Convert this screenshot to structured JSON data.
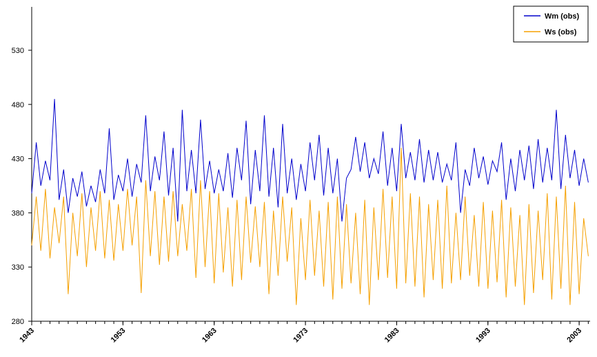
{
  "chart_data": {
    "type": "line",
    "title": "",
    "xlabel": "",
    "ylabel": "",
    "xlim": [
      1943,
      2004.2
    ],
    "ylim": [
      280,
      570
    ],
    "yticks": [
      280,
      330,
      380,
      430,
      480,
      530
    ],
    "xticks": [
      "1943",
      "1953",
      "1963",
      "1973",
      "1983",
      "1993",
      "2003"
    ],
    "grid": false,
    "legend_position": "top-right",
    "colors": {
      "Wm (obs)": "#0000cc",
      "Ws (obs)": "#f5a000"
    },
    "series": [
      {
        "name": "Wm (obs)",
        "x": [
          1943.0,
          1943.5,
          1944.0,
          1944.5,
          1945.0,
          1945.5,
          1946.0,
          1946.5,
          1947.0,
          1947.5,
          1948.0,
          1948.5,
          1949.0,
          1949.5,
          1950.0,
          1950.5,
          1951.0,
          1951.5,
          1952.0,
          1952.5,
          1953.0,
          1953.5,
          1954.0,
          1954.5,
          1955.0,
          1955.5,
          1956.0,
          1956.5,
          1957.0,
          1957.5,
          1958.0,
          1958.5,
          1959.0,
          1959.5,
          1960.0,
          1960.5,
          1961.0,
          1961.5,
          1962.0,
          1962.5,
          1963.0,
          1963.5,
          1964.0,
          1964.5,
          1965.0,
          1965.5,
          1966.0,
          1966.5,
          1967.0,
          1967.5,
          1968.0,
          1968.5,
          1969.0,
          1969.5,
          1970.0,
          1970.5,
          1971.0,
          1971.5,
          1972.0,
          1972.5,
          1973.0,
          1973.5,
          1974.0,
          1974.5,
          1975.0,
          1975.5,
          1976.0,
          1976.5,
          1977.0,
          1977.5,
          1978.0,
          1978.5,
          1979.0,
          1979.5,
          1980.0,
          1980.5,
          1981.0,
          1981.5,
          1982.0,
          1982.5,
          1983.0,
          1983.5,
          1984.0,
          1984.5,
          1985.0,
          1985.5,
          1986.0,
          1986.5,
          1987.0,
          1987.5,
          1988.0,
          1988.5,
          1989.0,
          1989.5,
          1990.0,
          1990.5,
          1991.0,
          1991.5,
          1992.0,
          1992.5,
          1993.0,
          1993.5,
          1994.0,
          1994.5,
          1995.0,
          1995.5,
          1996.0,
          1996.5,
          1997.0,
          1997.5,
          1998.0,
          1998.5,
          1999.0,
          1999.5,
          2000.0,
          2000.5,
          2001.0,
          2001.5,
          2002.0,
          2002.5,
          2003.0,
          2003.5,
          2004.0
        ],
        "values": [
          398,
          445,
          405,
          428,
          410,
          485,
          392,
          420,
          380,
          412,
          395,
          418,
          386,
          405,
          390,
          420,
          398,
          458,
          392,
          415,
          400,
          430,
          395,
          425,
          408,
          470,
          400,
          432,
          410,
          455,
          396,
          440,
          372,
          475,
          400,
          438,
          398,
          466,
          402,
          428,
          398,
          420,
          400,
          435,
          394,
          440,
          410,
          465,
          388,
          438,
          400,
          470,
          395,
          440,
          385,
          462,
          398,
          430,
          392,
          425,
          400,
          445,
          410,
          452,
          396,
          440,
          398,
          430,
          372,
          412,
          420,
          450,
          418,
          445,
          412,
          430,
          416,
          455,
          405,
          440,
          400,
          462,
          412,
          436,
          410,
          448,
          408,
          438,
          410,
          436,
          408,
          425,
          410,
          445,
          380,
          420,
          405,
          440,
          412,
          432,
          406,
          428,
          418,
          445,
          392,
          430,
          400,
          438,
          410,
          442,
          402,
          448,
          408,
          440,
          410,
          475,
          402,
          452,
          412,
          438,
          405,
          430,
          408
        ]
      },
      {
        "name": "Ws (obs)",
        "x": [
          1943.0,
          1943.5,
          1944.0,
          1944.5,
          1945.0,
          1945.5,
          1946.0,
          1946.5,
          1947.0,
          1947.5,
          1948.0,
          1948.5,
          1949.0,
          1949.5,
          1950.0,
          1950.5,
          1951.0,
          1951.5,
          1952.0,
          1952.5,
          1953.0,
          1953.5,
          1954.0,
          1954.5,
          1955.0,
          1955.5,
          1956.0,
          1956.5,
          1957.0,
          1957.5,
          1958.0,
          1958.5,
          1959.0,
          1959.5,
          1960.0,
          1960.5,
          1961.0,
          1961.5,
          1962.0,
          1962.5,
          1963.0,
          1963.5,
          1964.0,
          1964.5,
          1965.0,
          1965.5,
          1966.0,
          1966.5,
          1967.0,
          1967.5,
          1968.0,
          1968.5,
          1969.0,
          1969.5,
          1970.0,
          1970.5,
          1971.0,
          1971.5,
          1972.0,
          1972.5,
          1973.0,
          1973.5,
          1974.0,
          1974.5,
          1975.0,
          1975.5,
          1976.0,
          1976.5,
          1977.0,
          1977.5,
          1978.0,
          1978.5,
          1979.0,
          1979.5,
          1980.0,
          1980.5,
          1981.0,
          1981.5,
          1982.0,
          1982.5,
          1983.0,
          1983.5,
          1984.0,
          1984.5,
          1985.0,
          1985.5,
          1986.0,
          1986.5,
          1987.0,
          1987.5,
          1988.0,
          1988.5,
          1989.0,
          1989.5,
          1990.0,
          1990.5,
          1991.0,
          1991.5,
          1992.0,
          1992.5,
          1993.0,
          1993.5,
          1994.0,
          1994.5,
          1995.0,
          1995.5,
          1996.0,
          1996.5,
          1997.0,
          1997.5,
          1998.0,
          1998.5,
          1999.0,
          1999.5,
          2000.0,
          2000.5,
          2001.0,
          2001.5,
          2002.0,
          2002.5,
          2003.0,
          2003.5,
          2004.0
        ],
        "values": [
          350,
          395,
          345,
          402,
          338,
          385,
          352,
          395,
          305,
          380,
          340,
          398,
          330,
          385,
          345,
          400,
          338,
          392,
          336,
          388,
          345,
          402,
          350,
          395,
          306,
          410,
          340,
          400,
          332,
          395,
          335,
          400,
          340,
          388,
          345,
          402,
          320,
          410,
          330,
          400,
          315,
          398,
          325,
          385,
          312,
          392,
          318,
          395,
          334,
          386,
          330,
          390,
          305,
          382,
          322,
          395,
          335,
          385,
          295,
          375,
          318,
          392,
          322,
          382,
          312,
          390,
          300,
          395,
          310,
          388,
          315,
          380,
          305,
          392,
          295,
          385,
          318,
          402,
          320,
          395,
          310,
          440,
          315,
          398,
          312,
          395,
          302,
          388,
          318,
          392,
          310,
          405,
          315,
          380,
          318,
          395,
          322,
          378,
          312,
          390,
          310,
          382,
          316,
          392,
          302,
          385,
          312,
          378,
          295,
          388,
          306,
          382,
          318,
          398,
          300,
          395,
          310,
          405,
          295,
          390,
          305,
          375,
          340
        ]
      }
    ]
  }
}
